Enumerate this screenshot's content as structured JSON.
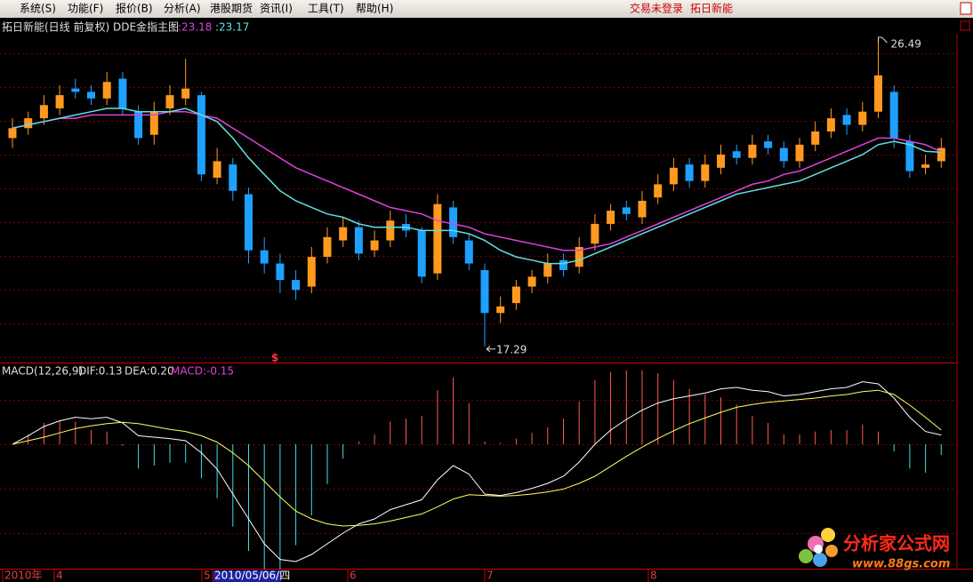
{
  "menu": [
    "系统(S)",
    "功能(F)",
    "报价(B)",
    "分析(A)",
    "港股期货",
    "资讯(I)",
    "工具(T)",
    "帮助(H)"
  ],
  "status": [
    "交易未登录",
    "拓日新能"
  ],
  "chart_data": [
    {
      "type": "candlestick",
      "title": "拓日新能(日线 前复权) DDE金指主图",
      "up_color": "#ff9a1f",
      "down_color": "#1ea0ff",
      "ylim": [
        16.8,
        26.76
      ],
      "open": [
        23.6,
        23.9,
        24.2,
        24.5,
        25.1,
        25.0,
        24.8,
        25.4,
        24.4,
        23.7,
        24.5,
        24.8,
        24.9,
        22.4,
        22.8,
        21.9,
        20.2,
        19.8,
        19.3,
        19.1,
        20.0,
        20.5,
        20.9,
        20.2,
        20.5,
        21.0,
        20.8,
        19.5,
        21.5,
        20.5,
        19.6,
        18.3,
        18.6,
        19.1,
        19.4,
        19.9,
        19.7,
        20.4,
        21.0,
        21.5,
        21.2,
        21.8,
        22.2,
        22.8,
        22.3,
        22.7,
        23.2,
        23.0,
        23.5,
        23.3,
        22.9,
        23.4,
        23.8,
        24.3,
        24.0,
        24.4,
        25.0,
        23.5,
        22.7,
        22.9
      ],
      "high": [
        24.2,
        24.4,
        24.9,
        25.2,
        25.4,
        25.2,
        25.6,
        25.6,
        24.6,
        24.7,
        25.2,
        26.0,
        25.0,
        23.3,
        23.0,
        22.1,
        20.6,
        20.1,
        19.6,
        20.3,
        20.9,
        21.2,
        21.1,
        20.8,
        21.4,
        21.3,
        20.9,
        21.9,
        21.7,
        20.7,
        19.8,
        18.8,
        19.3,
        19.6,
        20.1,
        20.1,
        20.6,
        21.3,
        21.6,
        21.7,
        22.0,
        22.5,
        23.0,
        23.0,
        23.1,
        23.4,
        23.4,
        23.7,
        23.7,
        23.5,
        23.6,
        24.1,
        24.5,
        24.5,
        24.7,
        26.49,
        25.2,
        23.7,
        23.1,
        23.6
      ],
      "low": [
        23.3,
        23.7,
        24.0,
        24.3,
        24.8,
        24.6,
        24.6,
        24.3,
        23.4,
        23.4,
        24.3,
        24.6,
        22.3,
        22.2,
        21.7,
        19.8,
        19.5,
        18.9,
        18.7,
        18.9,
        19.8,
        20.3,
        19.9,
        20.0,
        20.3,
        20.6,
        19.2,
        19.3,
        20.4,
        19.6,
        17.29,
        18.0,
        18.4,
        18.9,
        19.2,
        19.4,
        19.5,
        20.2,
        20.8,
        21.1,
        21.0,
        21.6,
        22.0,
        22.1,
        22.1,
        22.5,
        22.8,
        22.8,
        23.1,
        22.7,
        22.7,
        23.2,
        23.6,
        23.7,
        23.8,
        24.2,
        23.3,
        22.4,
        22.5,
        22.7
      ],
      "close": [
        23.9,
        24.2,
        24.6,
        24.9,
        25.0,
        24.8,
        25.3,
        24.5,
        23.6,
        24.4,
        24.9,
        25.1,
        22.5,
        22.9,
        22.0,
        20.2,
        19.8,
        19.3,
        19.0,
        20.0,
        20.6,
        20.9,
        20.1,
        20.5,
        21.1,
        20.8,
        19.4,
        21.6,
        20.6,
        19.8,
        18.3,
        18.5,
        19.1,
        19.4,
        19.8,
        19.6,
        20.3,
        21.0,
        21.4,
        21.3,
        21.7,
        22.2,
        22.7,
        22.3,
        22.8,
        23.1,
        23.0,
        23.4,
        23.3,
        22.9,
        23.4,
        23.8,
        24.2,
        24.0,
        24.4,
        25.5,
        23.6,
        22.6,
        22.8,
        23.3
      ],
      "series": [
        {
          "color": "#e040e0",
          "last_label": ":23.18",
          "values": [
            23.9,
            24.0,
            24.1,
            24.2,
            24.2,
            24.3,
            24.3,
            24.3,
            24.3,
            24.3,
            24.4,
            24.4,
            24.3,
            24.2,
            23.9,
            23.6,
            23.3,
            23.0,
            22.7,
            22.5,
            22.3,
            22.1,
            21.9,
            21.7,
            21.5,
            21.4,
            21.3,
            21.1,
            21.0,
            20.9,
            20.7,
            20.6,
            20.5,
            20.4,
            20.3,
            20.2,
            20.2,
            20.3,
            20.4,
            20.6,
            20.8,
            21.0,
            21.2,
            21.4,
            21.6,
            21.8,
            22.0,
            22.2,
            22.3,
            22.5,
            22.6,
            22.8,
            23.0,
            23.2,
            23.4,
            23.6,
            23.6,
            23.5,
            23.4,
            23.18
          ]
        },
        {
          "color": "#60e0e0",
          "last_label": ":23.17",
          "values": [
            23.9,
            24.0,
            24.1,
            24.2,
            24.3,
            24.4,
            24.5,
            24.5,
            24.4,
            24.4,
            24.4,
            24.5,
            24.3,
            24.1,
            23.6,
            23.0,
            22.5,
            22.0,
            21.7,
            21.5,
            21.3,
            21.2,
            21.0,
            20.9,
            20.9,
            20.9,
            20.8,
            20.8,
            20.8,
            20.7,
            20.5,
            20.2,
            20.0,
            19.9,
            19.8,
            19.8,
            19.9,
            20.1,
            20.3,
            20.5,
            20.7,
            20.9,
            21.1,
            21.3,
            21.5,
            21.7,
            21.9,
            22.0,
            22.1,
            22.2,
            22.3,
            22.5,
            22.7,
            22.9,
            23.1,
            23.4,
            23.5,
            23.4,
            23.2,
            23.17
          ]
        }
      ],
      "signal_marker": "$",
      "x_labels": [
        "2010年",
        "4",
        "5",
        "2010/05/06/四",
        "6",
        "7",
        "8"
      ]
    },
    {
      "type": "macd",
      "title": "MACD(12,26,9)",
      "ylim": [
        -1.75,
        1.125
      ],
      "series": [
        {
          "color": "#ffffff",
          "label": "DIF:0.13",
          "values": [
            0.0,
            0.12,
            0.25,
            0.33,
            0.38,
            0.36,
            0.38,
            0.3,
            0.12,
            0.1,
            0.08,
            0.05,
            -0.12,
            -0.35,
            -0.7,
            -1.05,
            -1.4,
            -1.62,
            -1.65,
            -1.55,
            -1.4,
            -1.25,
            -1.12,
            -1.05,
            -0.92,
            -0.85,
            -0.78,
            -0.5,
            -0.3,
            -0.42,
            -0.7,
            -0.72,
            -0.68,
            -0.62,
            -0.55,
            -0.45,
            -0.25,
            0.0,
            0.2,
            0.35,
            0.48,
            0.58,
            0.64,
            0.68,
            0.72,
            0.78,
            0.8,
            0.76,
            0.74,
            0.68,
            0.7,
            0.74,
            0.78,
            0.8,
            0.88,
            0.85,
            0.65,
            0.38,
            0.18,
            0.13
          ]
        },
        {
          "color": "#ffff60",
          "label": "DEA:0.20",
          "values": [
            0.0,
            0.05,
            0.1,
            0.16,
            0.22,
            0.26,
            0.29,
            0.31,
            0.29,
            0.25,
            0.21,
            0.18,
            0.12,
            0.03,
            -0.12,
            -0.3,
            -0.52,
            -0.74,
            -0.94,
            -1.05,
            -1.12,
            -1.15,
            -1.14,
            -1.12,
            -1.08,
            -1.03,
            -0.98,
            -0.88,
            -0.77,
            -0.71,
            -0.72,
            -0.73,
            -0.72,
            -0.7,
            -0.67,
            -0.63,
            -0.55,
            -0.45,
            -0.31,
            -0.17,
            -0.04,
            0.08,
            0.19,
            0.29,
            0.37,
            0.45,
            0.52,
            0.56,
            0.59,
            0.61,
            0.63,
            0.65,
            0.68,
            0.7,
            0.74,
            0.76,
            0.7,
            0.55,
            0.38,
            0.2
          ]
        }
      ],
      "histogram": {
        "label": "MACD:-0.15",
        "color": "#e040e0",
        "up_color": "#ff5a50",
        "down_color": "#40e0e0",
        "values": [
          0,
          0.14,
          0.3,
          0.34,
          0.32,
          0.2,
          0.18,
          -0.02,
          -0.34,
          -0.3,
          -0.26,
          -0.26,
          -0.48,
          -0.76,
          -1.16,
          -1.5,
          -1.76,
          -1.76,
          -1.42,
          -1.0,
          -0.56,
          -0.2,
          0.04,
          0.14,
          0.32,
          0.36,
          0.4,
          0.76,
          0.94,
          0.58,
          0.04,
          0.02,
          0.08,
          0.16,
          0.24,
          0.36,
          0.6,
          0.9,
          1.02,
          1.04,
          1.04,
          1.0,
          0.9,
          0.78,
          0.7,
          0.66,
          0.56,
          0.4,
          0.3,
          0.14,
          0.14,
          0.18,
          0.2,
          0.2,
          0.28,
          0.18,
          -0.1,
          -0.34,
          -0.4,
          -0.15
        ]
      }
    }
  ],
  "watermark": {
    "title": "分析家公式网",
    "url": "www.88gs.com"
  }
}
